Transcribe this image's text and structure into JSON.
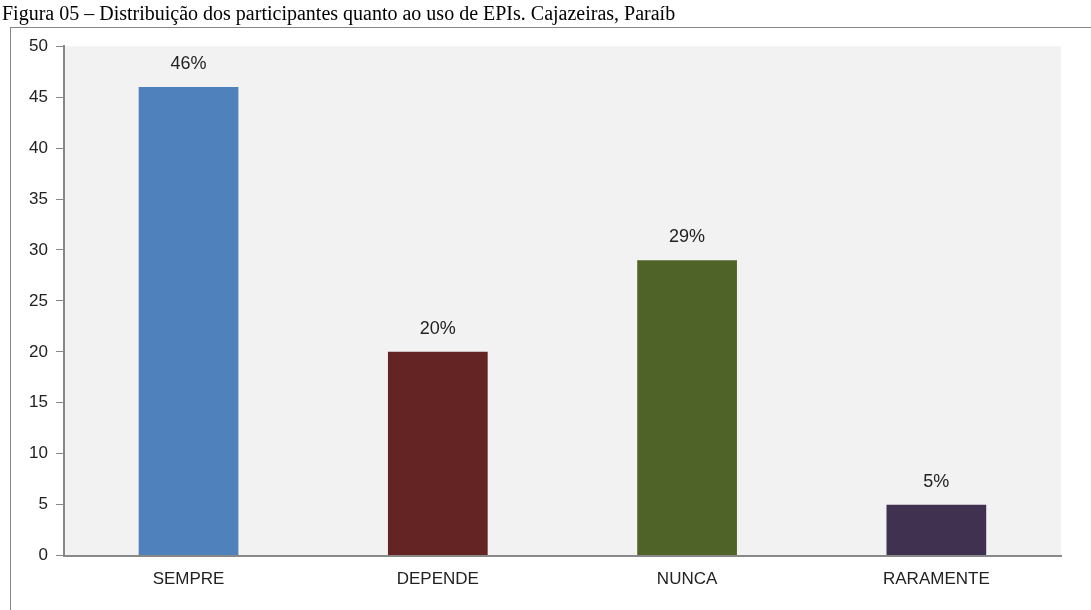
{
  "chart_data": {
    "type": "bar",
    "title": "Figura 05 – Distribuição dos participantes quanto ao uso de EPIs. Cajazeiras, Paraíb",
    "categories": [
      "SEMPRE",
      "DEPENDE",
      "NUNCA",
      "RARAMENTE"
    ],
    "values": [
      46,
      20,
      29,
      5
    ],
    "colors": [
      "#4f81bd",
      "#632423",
      "#4f6228",
      "#403151"
    ],
    "value_labels": [
      "46%",
      "20%",
      "29%",
      "5%"
    ],
    "ylim": [
      0,
      50
    ],
    "yticks": [
      0,
      5,
      10,
      15,
      20,
      25,
      30,
      35,
      40,
      45,
      50
    ],
    "grid": false,
    "legend": false
  }
}
